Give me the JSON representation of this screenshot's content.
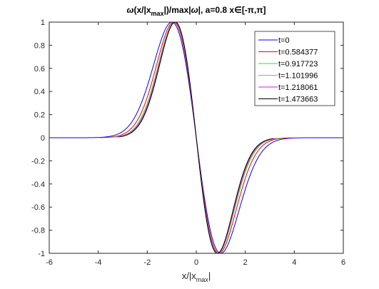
{
  "chart_data": {
    "type": "line",
    "title": {
      "omega": "ω",
      "x_over": "(x/|x",
      "max_sub": "max",
      "mid": "|)/max|",
      "omega2": "ω",
      "end": "|, a=0.8   x",
      "elem": "∈",
      "range": "[-π,π]"
    },
    "xlabel": {
      "main": "x/|x",
      "sub": "max",
      "end": "|"
    },
    "ylabel": "",
    "xlim": [
      -6,
      6
    ],
    "ylim": [
      -1,
      1
    ],
    "xticks": [
      "-6",
      "-4",
      "-2",
      "0",
      "2",
      "4",
      "6"
    ],
    "yticks": [
      "-1",
      "-0.8",
      "-0.6",
      "-0.4",
      "-0.2",
      "0",
      "0.2",
      "0.4",
      "0.6",
      "0.8",
      "1"
    ],
    "grid": false,
    "legend_position": "top-right",
    "series": [
      {
        "name": "t=0",
        "color": "#0000ff",
        "x_range": [
          -6,
          6
        ],
        "peak": -1,
        "width_scale": 1.0
      },
      {
        "name": "t=0.584377",
        "color": "#ff0000",
        "x_range": [
          -3.93,
          3.93
        ],
        "peak": -1,
        "width_scale": 0.93
      },
      {
        "name": "t=0.917723",
        "color": "#00ff00",
        "x_range": [
          -3.51,
          3.51
        ],
        "peak": -1,
        "width_scale": 0.89
      },
      {
        "name": "t=1.101996",
        "color": "#a0a0a0",
        "x_range": [
          -3.34,
          3.34
        ],
        "peak": -1,
        "width_scale": 0.88
      },
      {
        "name": "t=1.218061",
        "color": "#ff00ff",
        "x_range": [
          -3.24,
          3.24
        ],
        "peak": -1,
        "width_scale": 0.87
      },
      {
        "name": "t=1.473663",
        "color": "#000000",
        "x_range": [
          -3.14,
          3.14
        ],
        "peak": -1,
        "width_scale": 0.86
      }
    ]
  }
}
